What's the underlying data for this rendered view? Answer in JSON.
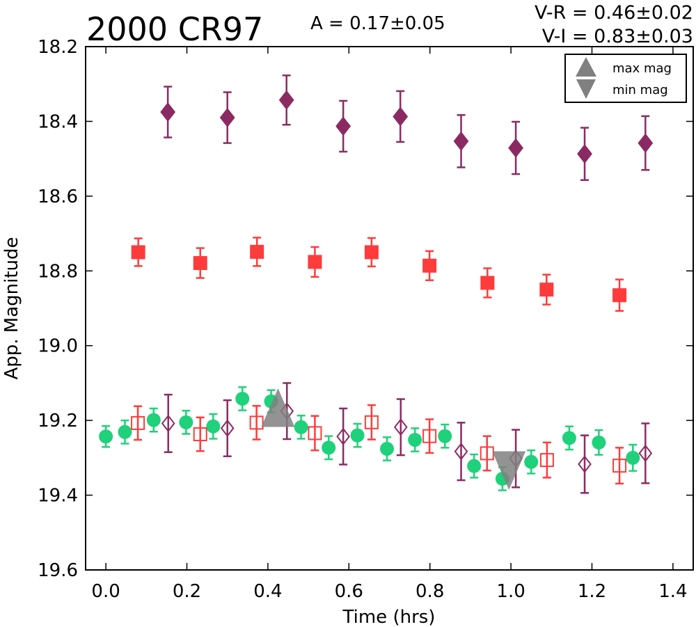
{
  "chart_data": {
    "type": "scatter",
    "title": "2000 CR97",
    "annotations": {
      "amplitude": "A  = 0.17±0.05",
      "v_r": "V-R = 0.46±0.02",
      "v_i": "V-I  = 0.83±0.03"
    },
    "xlabel": "Time (hrs)",
    "ylabel": "App. Magnitude",
    "xlim": [
      -0.05,
      1.45
    ],
    "ylim": [
      19.6,
      18.2
    ],
    "y_inverted": true,
    "grid": false,
    "legend_placement": "top-right",
    "xticks": [
      0.0,
      0.2,
      0.4,
      0.6,
      0.8,
      1.0,
      1.2,
      1.4
    ],
    "xtick_labels": [
      "0.0",
      "0.2",
      "0.4",
      "0.6",
      "0.8",
      "1.0",
      "1.2",
      "1.4"
    ],
    "yticks": [
      18.2,
      18.4,
      18.6,
      18.8,
      19.0,
      19.2,
      19.4,
      19.6
    ],
    "ytick_labels": [
      "18.2",
      "18.4",
      "18.6",
      "18.8",
      "19.0",
      "19.2",
      "19.4",
      "19.6"
    ],
    "legend": [
      {
        "label": "max mag",
        "marker": "triangle-up",
        "color": "#808080"
      },
      {
        "label": "min mag",
        "marker": "triangle-down",
        "color": "#808080"
      }
    ],
    "series": [
      {
        "marker": "diamond",
        "filled": true,
        "color": "#8b2a62",
        "marker_size": 14,
        "points": [
          {
            "x": 0.153,
            "y": 18.375,
            "err": 0.068
          },
          {
            "x": 0.3,
            "y": 18.39,
            "err": 0.068
          },
          {
            "x": 0.446,
            "y": 18.343,
            "err": 0.066
          },
          {
            "x": 0.586,
            "y": 18.413,
            "err": 0.068
          },
          {
            "x": 0.727,
            "y": 18.387,
            "err": 0.068
          },
          {
            "x": 0.877,
            "y": 18.453,
            "err": 0.07
          },
          {
            "x": 1.012,
            "y": 18.471,
            "err": 0.07
          },
          {
            "x": 1.182,
            "y": 18.487,
            "err": 0.07
          },
          {
            "x": 1.332,
            "y": 18.458,
            "err": 0.072
          }
        ]
      },
      {
        "marker": "square",
        "filled": true,
        "color": "#ff3b3b",
        "marker_size": 10,
        "points": [
          {
            "x": 0.08,
            "y": 18.75,
            "err": 0.037
          },
          {
            "x": 0.233,
            "y": 18.779,
            "err": 0.04
          },
          {
            "x": 0.373,
            "y": 18.749,
            "err": 0.038
          },
          {
            "x": 0.516,
            "y": 18.776,
            "err": 0.04
          },
          {
            "x": 0.656,
            "y": 18.75,
            "err": 0.038
          },
          {
            "x": 0.799,
            "y": 18.786,
            "err": 0.039
          },
          {
            "x": 0.942,
            "y": 18.832,
            "err": 0.039
          },
          {
            "x": 1.088,
            "y": 18.85,
            "err": 0.04
          },
          {
            "x": 1.268,
            "y": 18.865,
            "err": 0.042
          }
        ]
      },
      {
        "marker": "circle",
        "filled": true,
        "color": "#1fd17a",
        "marker_size": 10,
        "points": [
          {
            "x": 0.0,
            "y": 19.243,
            "err": 0.028
          },
          {
            "x": 0.047,
            "y": 19.231,
            "err": 0.031
          },
          {
            "x": 0.118,
            "y": 19.199,
            "err": 0.031
          },
          {
            "x": 0.198,
            "y": 19.205,
            "err": 0.031
          },
          {
            "x": 0.265,
            "y": 19.216,
            "err": 0.033
          },
          {
            "x": 0.337,
            "y": 19.142,
            "err": 0.031
          },
          {
            "x": 0.408,
            "y": 19.149,
            "err": 0.03
          },
          {
            "x": 0.482,
            "y": 19.218,
            "err": 0.031
          },
          {
            "x": 0.55,
            "y": 19.273,
            "err": 0.031
          },
          {
            "x": 0.621,
            "y": 19.24,
            "err": 0.031
          },
          {
            "x": 0.694,
            "y": 19.276,
            "err": 0.031
          },
          {
            "x": 0.763,
            "y": 19.252,
            "err": 0.031
          },
          {
            "x": 0.837,
            "y": 19.242,
            "err": 0.031
          },
          {
            "x": 0.909,
            "y": 19.322,
            "err": 0.031
          },
          {
            "x": 0.979,
            "y": 19.356,
            "err": 0.031
          },
          {
            "x": 1.05,
            "y": 19.311,
            "err": 0.031
          },
          {
            "x": 1.144,
            "y": 19.247,
            "err": 0.031
          },
          {
            "x": 1.217,
            "y": 19.259,
            "err": 0.033
          },
          {
            "x": 1.301,
            "y": 19.3,
            "err": 0.035
          }
        ]
      },
      {
        "marker": "square",
        "filled": false,
        "color": "#ff3b3b",
        "marker_size": 9,
        "points": [
          {
            "x": 0.079,
            "y": 19.207,
            "err": 0.045
          },
          {
            "x": 0.233,
            "y": 19.237,
            "err": 0.045
          },
          {
            "x": 0.372,
            "y": 19.206,
            "err": 0.045
          },
          {
            "x": 0.516,
            "y": 19.234,
            "err": 0.046
          },
          {
            "x": 0.656,
            "y": 19.205,
            "err": 0.046
          },
          {
            "x": 0.799,
            "y": 19.242,
            "err": 0.045
          },
          {
            "x": 0.941,
            "y": 19.288,
            "err": 0.046
          },
          {
            "x": 1.089,
            "y": 19.306,
            "err": 0.047
          },
          {
            "x": 1.268,
            "y": 19.321,
            "err": 0.048
          }
        ]
      },
      {
        "marker": "diamond",
        "filled": false,
        "color": "#8b2a62",
        "marker_size": 11,
        "points": [
          {
            "x": 0.154,
            "y": 19.208,
            "err": 0.077
          },
          {
            "x": 0.3,
            "y": 19.221,
            "err": 0.075
          },
          {
            "x": 0.447,
            "y": 19.175,
            "err": 0.075
          },
          {
            "x": 0.586,
            "y": 19.243,
            "err": 0.075
          },
          {
            "x": 0.728,
            "y": 19.218,
            "err": 0.075
          },
          {
            "x": 0.877,
            "y": 19.283,
            "err": 0.077
          },
          {
            "x": 1.012,
            "y": 19.302,
            "err": 0.077
          },
          {
            "x": 1.182,
            "y": 19.317,
            "err": 0.077
          },
          {
            "x": 1.332,
            "y": 19.288,
            "err": 0.08
          }
        ]
      }
    ],
    "extrema": [
      {
        "kind": "max mag",
        "marker": "triangle-up",
        "x": 0.425,
        "y": 19.17,
        "color": "#808080"
      },
      {
        "kind": "min mag",
        "marker": "triangle-down",
        "x": 0.995,
        "y": 19.33,
        "color": "#808080"
      }
    ]
  }
}
